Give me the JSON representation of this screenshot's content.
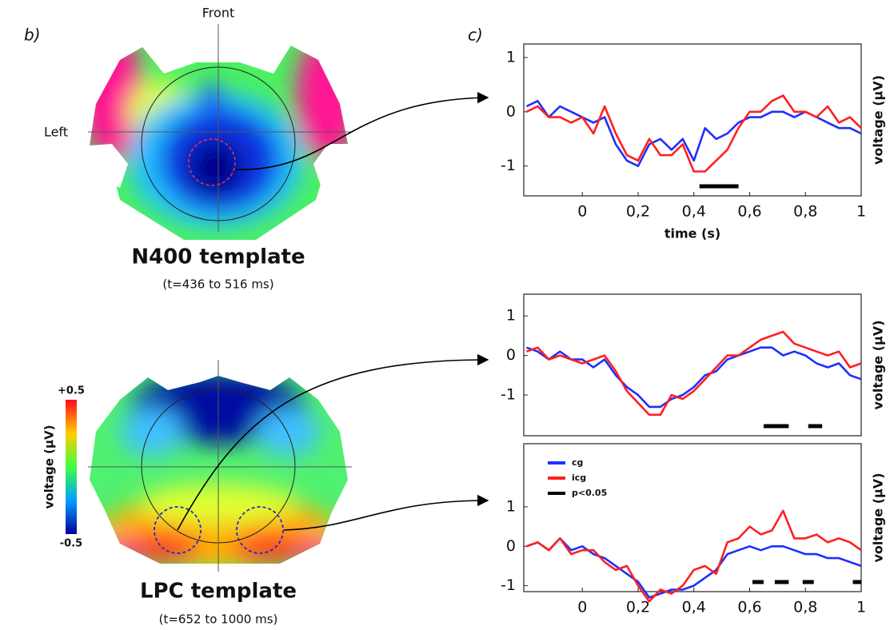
{
  "figure": {
    "panel_b_label": "b)",
    "panel_c_label": "c)",
    "front": "Front",
    "left": "Left",
    "n400_title": "N400 template",
    "n400_time": "(t=436 to 516 ms)",
    "lpc_title": "LPC template",
    "lpc_time": "(t=652 to 1000 ms)",
    "colorbar_label": "voltage (µV)",
    "colorbar_max": "+0.5",
    "colorbar_min": "-0.5"
  },
  "chart_data": [
    {
      "type": "line",
      "xlabel": "time (s)",
      "ylabel": "voltage (µV)",
      "x": [
        -0.2,
        -0.16,
        -0.12,
        -0.08,
        -0.04,
        0,
        0.04,
        0.08,
        0.12,
        0.16,
        0.2,
        0.24,
        0.28,
        0.32,
        0.36,
        0.4,
        0.44,
        0.48,
        0.52,
        0.56,
        0.6,
        0.64,
        0.68,
        0.72,
        0.76,
        0.8,
        0.84,
        0.88,
        0.92,
        0.96,
        1.0
      ],
      "series": [
        {
          "color": "#1f2fff",
          "values": [
            0.1,
            0.2,
            -0.1,
            0.1,
            0,
            -0.1,
            -0.2,
            -0.1,
            -0.6,
            -0.9,
            -1.0,
            -0.6,
            -0.5,
            -0.7,
            -0.5,
            -0.9,
            -0.3,
            -0.5,
            -0.4,
            -0.2,
            -0.1,
            -0.1,
            0,
            0,
            -0.1,
            0,
            -0.1,
            -0.2,
            -0.3,
            -0.3,
            -0.4
          ]
        },
        {
          "color": "#ff2020",
          "values": [
            0,
            0.1,
            -0.1,
            -0.1,
            -0.2,
            -0.1,
            -0.4,
            0.1,
            -0.4,
            -0.8,
            -0.9,
            -0.5,
            -0.8,
            -0.8,
            -0.6,
            -1.1,
            -1.1,
            -0.9,
            -0.7,
            -0.3,
            0,
            0,
            0.2,
            0.3,
            0,
            0,
            -0.1,
            0.1,
            -0.2,
            -0.1,
            -0.3
          ]
        }
      ],
      "significance": {
        "color": "#000000",
        "intervals": [
          [
            0.42,
            0.56
          ]
        ]
      },
      "xlim": [
        -0.21,
        1
      ],
      "ylim": [
        -1.55,
        1.25
      ],
      "xticks": [
        0,
        {
          "value": 0.2,
          "label": "0,2"
        },
        {
          "value": 0.4,
          "label": "0,4"
        },
        {
          "value": 0.6,
          "label": "0,6"
        },
        {
          "value": 0.8,
          "label": "0,8"
        },
        1
      ],
      "yticks": [
        -1,
        0,
        1
      ]
    },
    {
      "type": "line",
      "ylabel": "voltage (µV)",
      "x": [
        -0.2,
        -0.16,
        -0.12,
        -0.08,
        -0.04,
        0,
        0.04,
        0.08,
        0.12,
        0.16,
        0.2,
        0.24,
        0.28,
        0.32,
        0.36,
        0.4,
        0.44,
        0.48,
        0.52,
        0.56,
        0.6,
        0.64,
        0.68,
        0.72,
        0.76,
        0.8,
        0.84,
        0.88,
        0.92,
        0.96,
        1.0
      ],
      "series": [
        {
          "color": "#1f2fff",
          "values": [
            0.2,
            0.1,
            -0.1,
            0.1,
            -0.1,
            -0.1,
            -0.3,
            -0.1,
            -0.5,
            -0.8,
            -1.0,
            -1.3,
            -1.3,
            -1.1,
            -1.0,
            -0.8,
            -0.5,
            -0.4,
            -0.1,
            0,
            0.1,
            0.2,
            0.2,
            0,
            0.1,
            0,
            -0.2,
            -0.3,
            -0.2,
            -0.5,
            -0.6
          ]
        },
        {
          "color": "#ff2020",
          "values": [
            0.1,
            0.2,
            -0.1,
            0,
            -0.1,
            -0.2,
            -0.1,
            0,
            -0.4,
            -0.9,
            -1.2,
            -1.5,
            -1.5,
            -1.0,
            -1.1,
            -0.9,
            -0.6,
            -0.3,
            0,
            0,
            0.2,
            0.4,
            0.5,
            0.6,
            0.3,
            0.2,
            0.1,
            0,
            0.1,
            -0.3,
            -0.2
          ]
        }
      ],
      "significance": {
        "color": "#000000",
        "intervals": [
          [
            0.65,
            0.74
          ],
          [
            0.81,
            0.86
          ]
        ]
      },
      "xlim": [
        -0.21,
        1
      ],
      "ylim": [
        -2.03,
        1.55
      ],
      "yticks": [
        -1,
        0,
        1
      ]
    },
    {
      "type": "line",
      "ylabel": "voltage (µV)",
      "legend": true,
      "x": [
        -0.2,
        -0.16,
        -0.12,
        -0.08,
        -0.04,
        0,
        0.04,
        0.08,
        0.12,
        0.16,
        0.2,
        0.24,
        0.28,
        0.32,
        0.36,
        0.4,
        0.44,
        0.48,
        0.52,
        0.56,
        0.6,
        0.64,
        0.68,
        0.72,
        0.76,
        0.8,
        0.84,
        0.88,
        0.92,
        0.96,
        1.0
      ],
      "series": [
        {
          "name": "cg",
          "color": "#1f2fff",
          "values": [
            0,
            0.1,
            -0.1,
            0.2,
            -0.1,
            0,
            -0.2,
            -0.3,
            -0.5,
            -0.7,
            -0.9,
            -1.3,
            -1.2,
            -1.1,
            -1.1,
            -1.0,
            -0.8,
            -0.6,
            -0.2,
            -0.1,
            0,
            -0.1,
            0,
            0,
            -0.1,
            -0.2,
            -0.2,
            -0.3,
            -0.3,
            -0.4,
            -0.5
          ]
        },
        {
          "name": "icg",
          "color": "#ff2020",
          "values": [
            0,
            0.1,
            -0.1,
            0.2,
            -0.2,
            -0.1,
            -0.1,
            -0.4,
            -0.6,
            -0.5,
            -1.0,
            -1.4,
            -1.1,
            -1.2,
            -1.0,
            -0.6,
            -0.5,
            -0.7,
            0.1,
            0.2,
            0.5,
            0.3,
            0.4,
            0.9,
            0.2,
            0.2,
            0.3,
            0.1,
            0.2,
            0.1,
            -0.1
          ]
        }
      ],
      "significance": {
        "name": "p<0.05",
        "color": "#000000",
        "intervals": [
          [
            0.61,
            0.65
          ],
          [
            0.69,
            0.74
          ],
          [
            0.79,
            0.83
          ],
          [
            0.97,
            1.0
          ]
        ]
      },
      "xlim": [
        -0.21,
        1
      ],
      "ylim": [
        -1.15,
        2.6
      ],
      "xticks": [
        0,
        {
          "value": 0.2,
          "label": "0,2"
        },
        {
          "value": 0.4,
          "label": "0,4"
        },
        {
          "value": 0.6,
          "label": "0,6"
        },
        {
          "value": 0.8,
          "label": "0,8"
        },
        1
      ],
      "yticks": [
        -1,
        0,
        1
      ]
    }
  ]
}
